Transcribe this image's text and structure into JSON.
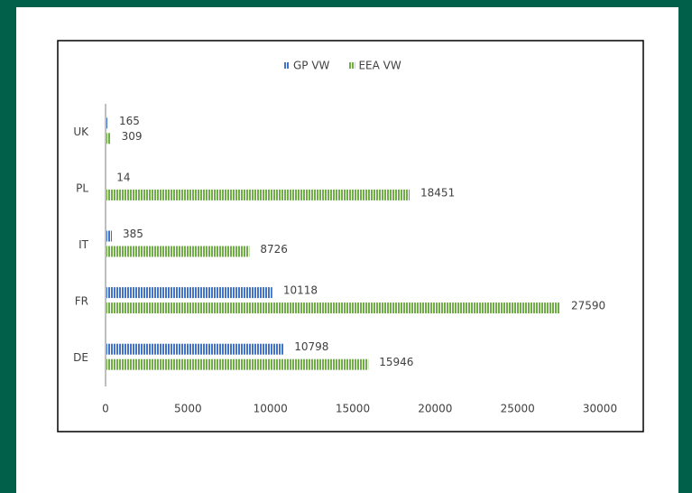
{
  "chart_data": {
    "type": "bar",
    "orientation": "horizontal",
    "categories": [
      "DE",
      "FR",
      "IT",
      "PL",
      "UK"
    ],
    "series": [
      {
        "name": "GP VW",
        "color": "#4472c4",
        "values": [
          10798,
          10118,
          385,
          14,
          165
        ]
      },
      {
        "name": "EEA VW",
        "color": "#70ad47",
        "values": [
          15946,
          27590,
          8726,
          18451,
          309
        ]
      }
    ],
    "xlim": [
      0,
      30000
    ],
    "xticks": [
      0,
      5000,
      10000,
      15000,
      20000,
      25000,
      30000
    ],
    "legend": "top",
    "grid": false
  }
}
